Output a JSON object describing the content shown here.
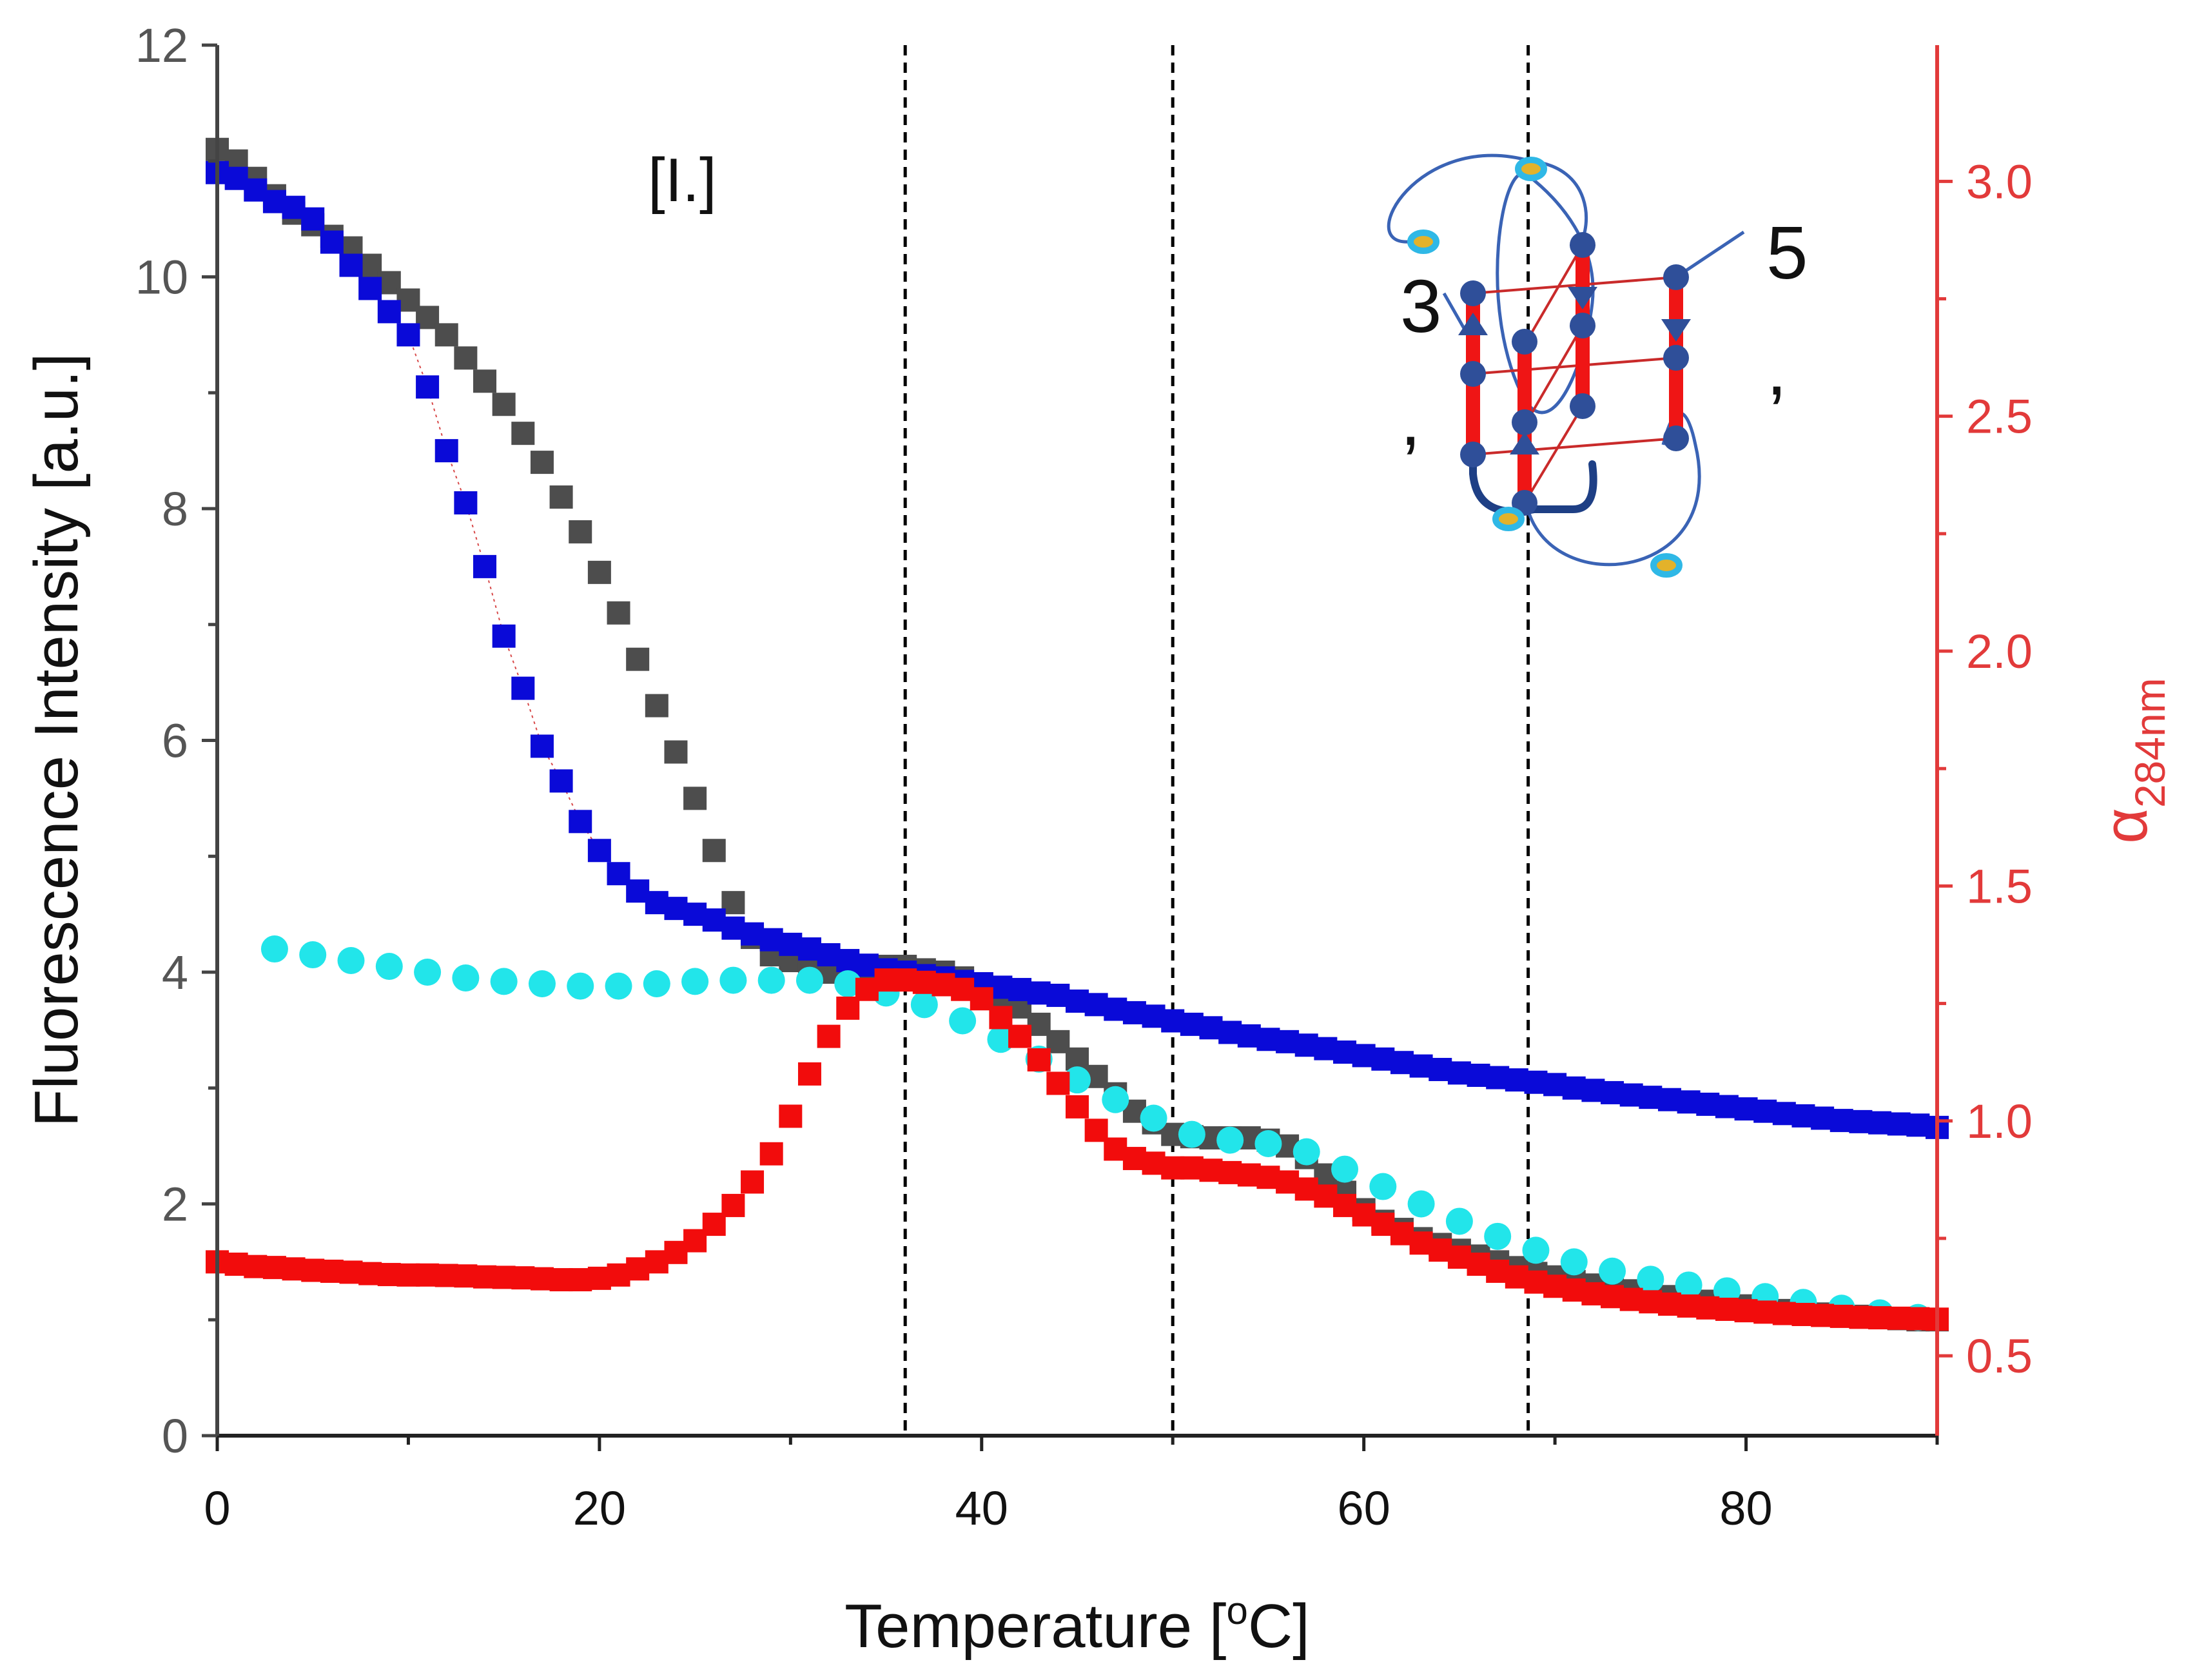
{
  "chart_data": {
    "type": "scatter",
    "xlabel_main": "Temperature [",
    "xlabel_sup": "o",
    "xlabel_tail": "C]",
    "ylabel": "Fluorescence Intensity [a.u.]",
    "y2label_main": "α",
    "y2label_sub": "284nm",
    "annotation": "[I.]",
    "xlim": [
      0,
      90
    ],
    "ylim": [
      0,
      12
    ],
    "y2lim": [
      0.33,
      3.29
    ],
    "x_ticks": [
      0,
      20,
      40,
      60,
      80
    ],
    "x_tick_labels": [
      "0",
      "20",
      "40",
      "60",
      "80"
    ],
    "y_ticks": [
      0,
      2,
      4,
      6,
      8,
      10,
      12
    ],
    "y_tick_labels": [
      "0",
      "2",
      "4",
      "6",
      "8",
      "10",
      "12"
    ],
    "y2_ticks": [
      0.5,
      1.0,
      1.5,
      2.0,
      2.5,
      3.0
    ],
    "y2_tick_labels": [
      "0.5",
      "1.0",
      "1.5",
      "2.0",
      "2.5",
      "3.0"
    ],
    "vlines": [
      36,
      50,
      68.6
    ],
    "series": [
      {
        "name": "dark-gray",
        "axis": "left",
        "marker": "square",
        "color": "#4d4d4d",
        "x": [
          0,
          1,
          2,
          3,
          4,
          5,
          6,
          7,
          8,
          9,
          10,
          11,
          12,
          13,
          14,
          15,
          16,
          17,
          18,
          19,
          20,
          21,
          22,
          23,
          24,
          25,
          26,
          27,
          28,
          29,
          30,
          31,
          32,
          33,
          34,
          35,
          36,
          37,
          38,
          39,
          40,
          41,
          42,
          43,
          44,
          45,
          46,
          47,
          48,
          49,
          50,
          51,
          52,
          53,
          54,
          55,
          56,
          57,
          58,
          59,
          60,
          61,
          62,
          63,
          64,
          65,
          66,
          67,
          68,
          69,
          70,
          71,
          72,
          73,
          74,
          75,
          76,
          77,
          78,
          79,
          80,
          81,
          82,
          83,
          84,
          85,
          86,
          87,
          88,
          89,
          90
        ],
        "y": [
          11.1,
          11.0,
          10.85,
          10.7,
          10.55,
          10.45,
          10.35,
          10.25,
          10.1,
          9.95,
          9.8,
          9.65,
          9.5,
          9.3,
          9.1,
          8.9,
          8.65,
          8.4,
          8.1,
          7.8,
          7.45,
          7.1,
          6.7,
          6.3,
          5.9,
          5.5,
          5.05,
          4.6,
          4.3,
          4.15,
          4.1,
          4.05,
          4.0,
          4.02,
          4.05,
          4.05,
          4.05,
          4.02,
          4.0,
          3.95,
          3.9,
          3.8,
          3.7,
          3.55,
          3.4,
          3.25,
          3.1,
          2.95,
          2.8,
          2.7,
          2.6,
          2.58,
          2.57,
          2.57,
          2.57,
          2.55,
          2.5,
          2.4,
          2.25,
          2.1,
          1.95,
          1.85,
          1.78,
          1.7,
          1.65,
          1.6,
          1.55,
          1.5,
          1.45,
          1.4,
          1.37,
          1.33,
          1.3,
          1.27,
          1.25,
          1.22,
          1.2,
          1.18,
          1.16,
          1.14,
          1.12,
          1.1,
          1.08,
          1.06,
          1.05,
          1.04,
          1.03,
          1.02,
          1.01,
          1.0,
          1.0
        ]
      },
      {
        "name": "blue",
        "axis": "left",
        "marker": "square",
        "color": "#0a0ad8",
        "x": [
          0,
          1,
          2,
          3,
          4,
          5,
          6,
          7,
          8,
          9,
          10,
          11,
          12,
          13,
          14,
          15,
          16,
          17,
          18,
          19,
          20,
          21,
          22,
          23,
          24,
          25,
          26,
          27,
          28,
          29,
          30,
          31,
          32,
          33,
          34,
          35,
          36,
          37,
          38,
          39,
          40,
          41,
          42,
          43,
          44,
          45,
          46,
          47,
          48,
          49,
          50,
          51,
          52,
          53,
          54,
          55,
          56,
          57,
          58,
          59,
          60,
          61,
          62,
          63,
          64,
          65,
          66,
          67,
          68,
          69,
          70,
          71,
          72,
          73,
          74,
          75,
          76,
          77,
          78,
          79,
          80,
          81,
          82,
          83,
          84,
          85,
          86,
          87,
          88,
          89,
          90
        ],
        "y": [
          10.9,
          10.85,
          10.75,
          10.65,
          10.6,
          10.5,
          10.3,
          10.1,
          9.9,
          9.7,
          9.5,
          9.05,
          8.5,
          8.05,
          7.5,
          6.9,
          6.45,
          5.95,
          5.65,
          5.3,
          5.05,
          4.85,
          4.7,
          4.6,
          4.55,
          4.5,
          4.45,
          4.38,
          4.33,
          4.28,
          4.24,
          4.2,
          4.15,
          4.1,
          4.06,
          4.02,
          4.0,
          3.97,
          3.95,
          3.92,
          3.9,
          3.87,
          3.85,
          3.82,
          3.8,
          3.75,
          3.72,
          3.68,
          3.65,
          3.62,
          3.58,
          3.55,
          3.52,
          3.48,
          3.45,
          3.42,
          3.4,
          3.37,
          3.34,
          3.31,
          3.28,
          3.25,
          3.22,
          3.19,
          3.16,
          3.13,
          3.11,
          3.09,
          3.07,
          3.05,
          3.03,
          3.0,
          2.98,
          2.96,
          2.94,
          2.92,
          2.9,
          2.88,
          2.86,
          2.84,
          2.82,
          2.8,
          2.78,
          2.76,
          2.74,
          2.72,
          2.71,
          2.7,
          2.69,
          2.68,
          2.66
        ]
      },
      {
        "name": "cyan",
        "axis": "left",
        "marker": "circle",
        "color": "#22e5ea",
        "x": [
          3,
          5,
          7,
          9,
          11,
          13,
          15,
          17,
          19,
          21,
          23,
          25,
          27,
          29,
          31,
          33,
          35,
          37,
          39,
          41,
          43,
          45,
          47,
          49,
          51,
          53,
          55,
          57,
          59,
          61,
          63,
          65,
          67,
          69,
          71,
          73,
          75,
          77,
          79,
          81,
          83,
          85,
          87,
          89
        ],
        "y": [
          4.2,
          4.15,
          4.1,
          4.05,
          4.0,
          3.95,
          3.92,
          3.9,
          3.88,
          3.88,
          3.9,
          3.92,
          3.93,
          3.93,
          3.93,
          3.9,
          3.82,
          3.72,
          3.58,
          3.42,
          3.25,
          3.07,
          2.9,
          2.74,
          2.6,
          2.55,
          2.52,
          2.45,
          2.3,
          2.15,
          2.0,
          1.85,
          1.72,
          1.6,
          1.5,
          1.42,
          1.35,
          1.3,
          1.25,
          1.2,
          1.15,
          1.1,
          1.06,
          1.02
        ]
      },
      {
        "name": "red",
        "axis": "right",
        "marker": "square",
        "color": "#f20c0c",
        "x": [
          0,
          1,
          2,
          3,
          4,
          5,
          6,
          7,
          8,
          9,
          10,
          11,
          12,
          13,
          14,
          15,
          16,
          17,
          18,
          19,
          20,
          21,
          22,
          23,
          24,
          25,
          26,
          27,
          28,
          29,
          30,
          31,
          32,
          33,
          34,
          35,
          36,
          37,
          38,
          39,
          40,
          41,
          42,
          43,
          44,
          45,
          46,
          47,
          48,
          49,
          50,
          51,
          52,
          53,
          54,
          55,
          56,
          57,
          58,
          59,
          60,
          61,
          62,
          63,
          64,
          65,
          66,
          67,
          68,
          69,
          70,
          71,
          72,
          73,
          74,
          75,
          76,
          77,
          78,
          79,
          80,
          81,
          82,
          83,
          84,
          85,
          86,
          87,
          88,
          89,
          90
        ],
        "y": [
          0.7,
          0.695,
          0.69,
          0.688,
          0.685,
          0.682,
          0.68,
          0.678,
          0.675,
          0.673,
          0.672,
          0.672,
          0.671,
          0.67,
          0.668,
          0.667,
          0.666,
          0.664,
          0.662,
          0.662,
          0.665,
          0.672,
          0.685,
          0.7,
          0.72,
          0.745,
          0.78,
          0.82,
          0.87,
          0.93,
          1.01,
          1.1,
          1.18,
          1.24,
          1.28,
          1.3,
          1.3,
          1.295,
          1.29,
          1.28,
          1.26,
          1.22,
          1.18,
          1.13,
          1.08,
          1.03,
          0.98,
          0.94,
          0.92,
          0.91,
          0.9,
          0.9,
          0.895,
          0.89,
          0.885,
          0.88,
          0.87,
          0.855,
          0.84,
          0.82,
          0.8,
          0.78,
          0.76,
          0.74,
          0.725,
          0.71,
          0.695,
          0.68,
          0.668,
          0.657,
          0.648,
          0.64,
          0.632,
          0.626,
          0.62,
          0.615,
          0.61,
          0.606,
          0.602,
          0.599,
          0.596,
          0.593,
          0.59,
          0.588,
          0.586,
          0.584,
          0.582,
          0.581,
          0.58,
          0.579,
          0.578
        ]
      }
    ]
  }
}
